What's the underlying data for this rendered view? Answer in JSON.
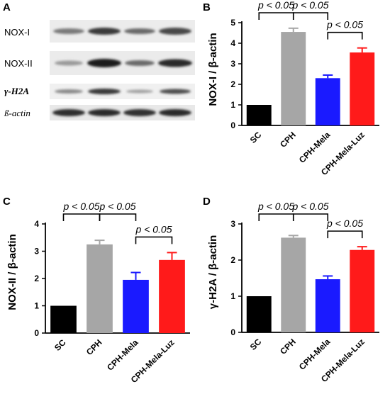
{
  "panels": {
    "a": "A",
    "b": "B",
    "c": "C",
    "d": "D"
  },
  "blot": {
    "rows": [
      {
        "label": "NOX-I"
      },
      {
        "label": "NOX-II"
      },
      {
        "label": "γ-H2A"
      },
      {
        "label": "ß-actin"
      }
    ],
    "lanes": 4
  },
  "colors": {
    "SC": "#000000",
    "CPH": "#a6a6a6",
    "CPH-Mela": "#1a1aff",
    "CPH-Mela-Luz": "#ff1a1a"
  },
  "chart_data": [
    {
      "panel": "B",
      "type": "bar",
      "categories": [
        "SC",
        "CPH",
        "CPH-Mela",
        "CPH-Mela-Luz"
      ],
      "values": [
        1.0,
        4.55,
        2.3,
        3.55
      ],
      "errors": [
        0,
        0.18,
        0.15,
        0.22
      ],
      "ylabel": "NOX-I / β-actin",
      "ylim": [
        0,
        5
      ],
      "yticks": [
        0,
        1,
        2,
        3,
        4,
        5
      ],
      "tick_labels": [
        "0",
        "1",
        "2",
        "3",
        "4",
        "5"
      ],
      "annotations": [
        {
          "text": "p < 0.05",
          "from": 0,
          "to": 1,
          "level": 0
        },
        {
          "text": "p < 0.05",
          "from": 1,
          "to": 2,
          "level": 0
        },
        {
          "text": "p < 0.05",
          "from": 2,
          "to": 3,
          "level": 1
        }
      ]
    },
    {
      "panel": "C",
      "type": "bar",
      "categories": [
        "SC",
        "CPH",
        "CPH-Mela",
        "CPH-Mela-Luz"
      ],
      "values": [
        1.0,
        3.25,
        1.95,
        2.68
      ],
      "errors": [
        0,
        0.15,
        0.27,
        0.27
      ],
      "ylabel": "NOX-II / β-actin",
      "ylim": [
        0,
        4
      ],
      "yticks": [
        0,
        1,
        2,
        3,
        4
      ],
      "tick_labels": [
        "0",
        "1",
        "2",
        "3",
        "4"
      ],
      "annotations": [
        {
          "text": "p < 0.05",
          "from": 0,
          "to": 1,
          "level": 0
        },
        {
          "text": "p < 0.05",
          "from": 1,
          "to": 2,
          "level": 0
        },
        {
          "text": "p < 0.05",
          "from": 2,
          "to": 3,
          "level": 1
        }
      ]
    },
    {
      "panel": "D",
      "type": "bar",
      "categories": [
        "SC",
        "CPH",
        "CPH-Mela",
        "CPH-Mela-Luz"
      ],
      "values": [
        1.0,
        2.62,
        1.47,
        2.28
      ],
      "errors": [
        0,
        0.06,
        0.09,
        0.09
      ],
      "ylabel": "γ-H2A / β-actin",
      "ylim": [
        0,
        3
      ],
      "yticks": [
        0,
        1,
        2,
        3
      ],
      "tick_labels": [
        "0",
        "1",
        "2",
        "3"
      ],
      "annotations": [
        {
          "text": "p < 0.05",
          "from": 0,
          "to": 1,
          "level": 0
        },
        {
          "text": "p < 0.05",
          "from": 1,
          "to": 2,
          "level": 0
        },
        {
          "text": "p < 0.05",
          "from": 2,
          "to": 3,
          "level": 1
        }
      ]
    }
  ]
}
